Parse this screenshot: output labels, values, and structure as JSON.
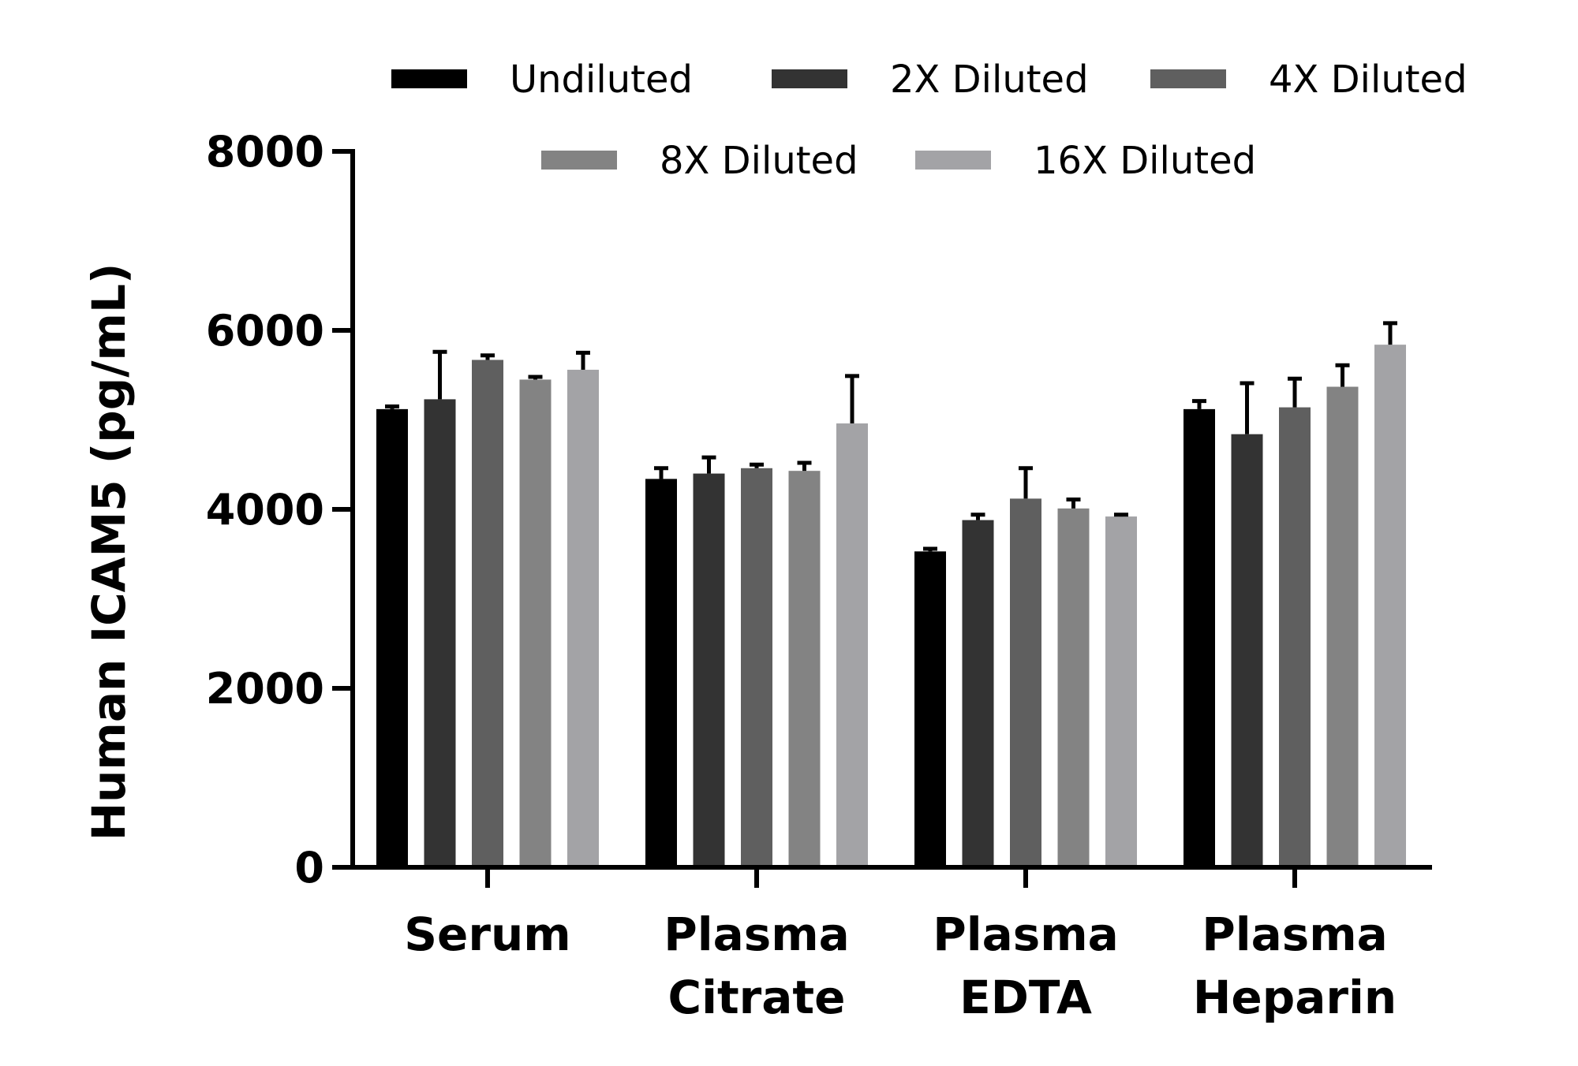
{
  "chart_data": {
    "type": "bar",
    "ylabel": "Human ICAM5 (pg/mL)",
    "xlabel": "",
    "ylim": [
      0,
      8000
    ],
    "yticks": [
      0,
      2000,
      4000,
      6000,
      8000
    ],
    "categories": [
      [
        "Serum"
      ],
      [
        "Plasma",
        "Citrate"
      ],
      [
        "Plasma",
        "EDTA"
      ],
      [
        "Plasma",
        "Heparin"
      ]
    ],
    "legend_position": "top",
    "series": [
      {
        "name": "Undiluted",
        "color": "#000000",
        "values": [
          5120,
          4340,
          3530,
          5120
        ],
        "errors": [
          30,
          120,
          30,
          90
        ]
      },
      {
        "name": "2X Diluted",
        "color": "#333333",
        "values": [
          5230,
          4400,
          3880,
          4840
        ],
        "errors": [
          530,
          180,
          60,
          570
        ]
      },
      {
        "name": "4X Diluted",
        "color": "#5f5f5f",
        "values": [
          5670,
          4460,
          4120,
          5140
        ],
        "errors": [
          50,
          40,
          340,
          320
        ]
      },
      {
        "name": "8X Diluted",
        "color": "#838383",
        "values": [
          5450,
          4430,
          4010,
          5370
        ],
        "errors": [
          30,
          90,
          100,
          240
        ]
      },
      {
        "name": "16X Diluted",
        "color": "#a3a3a6",
        "values": [
          5560,
          4960,
          3920,
          5840
        ],
        "errors": [
          190,
          530,
          20,
          240
        ]
      }
    ]
  }
}
